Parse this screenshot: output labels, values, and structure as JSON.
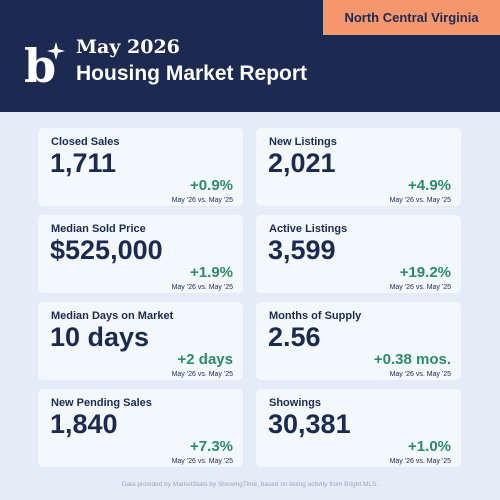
{
  "header": {
    "tag": "North Central Virginia",
    "title_line1": "May 2026",
    "title_line2": "Housing Market Report"
  },
  "cards": [
    {
      "label": "Closed Sales",
      "value": "1,711",
      "change": "+0.9%",
      "note": "May '26 vs. May '25"
    },
    {
      "label": "New Listings",
      "value": "2,021",
      "change": "+4.9%",
      "note": "May '26 vs. May '25"
    },
    {
      "label": "Median Sold Price",
      "value": "$525,000",
      "change": "+1.9%",
      "note": "May '26 vs. May '25"
    },
    {
      "label": "Active Listings",
      "value": "3,599",
      "change": "+19.2%",
      "note": "May '26 vs. May '25"
    },
    {
      "label": "Median Days on Market",
      "value": "10 days",
      "change": "+2 days",
      "note": "May '26 vs. May '25"
    },
    {
      "label": "Months of Supply",
      "value": "2.56",
      "change": "+0.38 mos.",
      "note": "May '26 vs. May '25"
    },
    {
      "label": "New Pending Sales",
      "value": "1,840",
      "change": "+7.3%",
      "note": "May '26 vs. May '25"
    },
    {
      "label": "Showings",
      "value": "30,381",
      "change": "+1.0%",
      "note": "May '26 vs. May '25"
    }
  ],
  "footer": "Data provided by MarketStats by ShowingTime, based on listing activity from Bright MLS."
}
